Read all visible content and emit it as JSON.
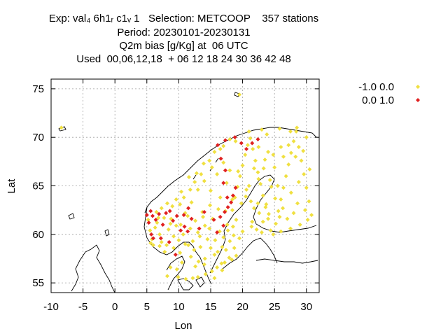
{
  "title": {
    "line1": "Exp: val₄ 6h1ᵣ c1ᵥ 1   Selection: METCOOP    357 stations",
    "line2": "Period: 20230101-20230131",
    "line3": "Q2m bias [g/Kg] at  06 UTC",
    "line4": "Used  00,06,12,18  + 06 12 18 24 30 36 42 48"
  },
  "chart_data": {
    "type": "scatter",
    "xlabel": "Lon",
    "ylabel": "Lat",
    "xlim": [
      -10,
      32
    ],
    "ylim": [
      54,
      76
    ],
    "xticks": [
      -10,
      -5,
      0,
      5,
      10,
      15,
      20,
      25,
      30
    ],
    "yticks": [
      55,
      60,
      65,
      70,
      75
    ],
    "grid": true,
    "legend_position": "right",
    "series": [
      {
        "name": "-1.0 0.0",
        "color": "#f0e040",
        "points": [
          [
            -8.4,
            71.0
          ],
          [
            19.5,
            74.4
          ],
          [
            5.2,
            61.5
          ],
          [
            5.5,
            60.4
          ],
          [
            5.8,
            59.5
          ],
          [
            6.0,
            58.9
          ],
          [
            6.3,
            60.7
          ],
          [
            6.6,
            61.2
          ],
          [
            7.0,
            60.0
          ],
          [
            7.3,
            59.2
          ],
          [
            7.8,
            58.2
          ],
          [
            8.1,
            58.9
          ],
          [
            8.4,
            60.5
          ],
          [
            8.8,
            61.6
          ],
          [
            9.2,
            59.8
          ],
          [
            9.6,
            60.9
          ],
          [
            10.0,
            59.4
          ],
          [
            10.3,
            61.0
          ],
          [
            10.7,
            60.0
          ],
          [
            11.0,
            59.0
          ],
          [
            11.4,
            61.9
          ],
          [
            11.8,
            60.6
          ],
          [
            12.2,
            59.3
          ],
          [
            12.6,
            61.4
          ],
          [
            13.0,
            60.2
          ],
          [
            13.4,
            58.7
          ],
          [
            13.7,
            62.3
          ],
          [
            14.1,
            60.9
          ],
          [
            14.5,
            59.5
          ],
          [
            14.9,
            63.0
          ],
          [
            15.3,
            61.6
          ],
          [
            15.6,
            57.9
          ],
          [
            16.0,
            56.6
          ],
          [
            16.4,
            60.3
          ],
          [
            16.8,
            58.7
          ],
          [
            17.2,
            57.1
          ],
          [
            17.6,
            61.0
          ],
          [
            18.0,
            59.3
          ],
          [
            18.4,
            62.5
          ],
          [
            18.8,
            63.8
          ],
          [
            19.2,
            64.9
          ],
          [
            19.6,
            66.0
          ],
          [
            20.0,
            67.1
          ],
          [
            20.4,
            68.2
          ],
          [
            20.8,
            69.2
          ],
          [
            21.2,
            69.9
          ],
          [
            21.6,
            68.8
          ],
          [
            22.0,
            67.6
          ],
          [
            22.4,
            66.4
          ],
          [
            22.8,
            65.2
          ],
          [
            23.2,
            64.0
          ],
          [
            23.6,
            62.8
          ],
          [
            24.0,
            61.6
          ],
          [
            24.4,
            60.4
          ],
          [
            24.8,
            60.0
          ],
          [
            25.2,
            61.1
          ],
          [
            25.6,
            62.4
          ],
          [
            26.0,
            63.6
          ],
          [
            26.4,
            64.8
          ],
          [
            26.8,
            66.0
          ],
          [
            27.2,
            67.2
          ],
          [
            27.6,
            68.4
          ],
          [
            28.0,
            69.6
          ],
          [
            28.4,
            70.6
          ],
          [
            28.8,
            69.0
          ],
          [
            29.2,
            67.6
          ],
          [
            29.6,
            66.2
          ],
          [
            30.0,
            64.8
          ],
          [
            30.4,
            63.4
          ],
          [
            30.8,
            62.0
          ],
          [
            29.0,
            61.0
          ],
          [
            27.5,
            60.6
          ],
          [
            26.0,
            60.3
          ],
          [
            23.0,
            60.2
          ],
          [
            22.2,
            60.5
          ],
          [
            21.5,
            61.3
          ],
          [
            21.8,
            62.7
          ],
          [
            21.3,
            63.4
          ],
          [
            20.5,
            63.9
          ],
          [
            25.5,
            65.0
          ],
          [
            24.3,
            65.6
          ],
          [
            22.5,
            65.7
          ],
          [
            21.0,
            65.0
          ],
          [
            17.5,
            65.3
          ],
          [
            16.0,
            66.2
          ],
          [
            14.8,
            67.6
          ],
          [
            15.6,
            68.5
          ],
          [
            17.0,
            69.1
          ],
          [
            18.9,
            69.6
          ],
          [
            23.8,
            70.3
          ],
          [
            25.8,
            70.9
          ],
          [
            27.5,
            70.6
          ],
          [
            30.0,
            70.0
          ],
          [
            28.5,
            71.0
          ],
          [
            26.0,
            69.0
          ],
          [
            24.0,
            68.5
          ],
          [
            22.5,
            69.0
          ],
          [
            13.5,
            66.2
          ],
          [
            12.5,
            65.4
          ],
          [
            11.8,
            64.6
          ],
          [
            10.8,
            63.8
          ],
          [
            10.2,
            63.1
          ],
          [
            9.0,
            62.9
          ],
          [
            8.2,
            63.2
          ],
          [
            7.3,
            62.7
          ],
          [
            6.5,
            62.3
          ],
          [
            11.0,
            62.2
          ],
          [
            12.0,
            63.3
          ],
          [
            13.0,
            64.6
          ],
          [
            14.0,
            65.5
          ],
          [
            16.5,
            63.8
          ],
          [
            15.0,
            64.5
          ],
          [
            17.3,
            62.4
          ],
          [
            19.0,
            61.5
          ],
          [
            20.0,
            60.3
          ],
          [
            19.5,
            59.6
          ],
          [
            18.7,
            58.6
          ],
          [
            17.9,
            57.6
          ],
          [
            16.7,
            57.0
          ],
          [
            15.2,
            56.2
          ],
          [
            14.2,
            55.9
          ],
          [
            13.0,
            55.6
          ],
          [
            12.6,
            56.7
          ],
          [
            11.9,
            57.7
          ],
          [
            12.4,
            58.4
          ],
          [
            13.3,
            59.8
          ],
          [
            14.8,
            60.6
          ],
          [
            15.7,
            59.4
          ],
          [
            17.0,
            59.7
          ],
          [
            18.5,
            60.8
          ],
          [
            10.5,
            57.1
          ],
          [
            9.7,
            56.4
          ],
          [
            8.7,
            56.6
          ],
          [
            9.9,
            55.6
          ],
          [
            11.1,
            55.4
          ],
          [
            8.2,
            55.7
          ],
          [
            12.2,
            55.5
          ],
          [
            14.0,
            56.9
          ],
          [
            23.0,
            70.8
          ],
          [
            21.0,
            70.6
          ],
          [
            18.0,
            69.8
          ],
          [
            16.5,
            68.8
          ],
          [
            15.2,
            66.9
          ],
          [
            13.9,
            67.3
          ],
          [
            12.8,
            66.3
          ],
          [
            11.6,
            65.9
          ],
          [
            10.4,
            64.4
          ],
          [
            9.6,
            63.6
          ],
          [
            8.7,
            61.1
          ],
          [
            7.7,
            61.7
          ],
          [
            7.0,
            58.8
          ],
          [
            6.8,
            61.7
          ],
          [
            5.6,
            59.1
          ],
          [
            9.2,
            58.6
          ],
          [
            10.2,
            58.1
          ],
          [
            11.5,
            58.9
          ],
          [
            13.8,
            61.8
          ],
          [
            16.2,
            62.6
          ],
          [
            18.4,
            63.6
          ],
          [
            20.6,
            64.6
          ],
          [
            19.3,
            66.5
          ],
          [
            18.0,
            66.6
          ],
          [
            17.0,
            67.4
          ],
          [
            21.8,
            66.8
          ],
          [
            23.3,
            66.8
          ],
          [
            25.0,
            66.9
          ],
          [
            26.4,
            68.0
          ],
          [
            27.2,
            69.2
          ],
          [
            24.8,
            68.2
          ],
          [
            23.5,
            67.7
          ],
          [
            28.3,
            68.0
          ],
          [
            29.5,
            68.6
          ],
          [
            30.5,
            66.7
          ],
          [
            28.8,
            65.4
          ],
          [
            27.6,
            64.3
          ],
          [
            28.6,
            63.2
          ],
          [
            29.8,
            62.5
          ],
          [
            30.2,
            61.5
          ],
          [
            27.0,
            61.6
          ],
          [
            26.3,
            62.7
          ],
          [
            25.1,
            63.7
          ],
          [
            24.5,
            64.9
          ],
          [
            23.7,
            63.1
          ],
          [
            22.6,
            62.2
          ],
          [
            23.2,
            61.3
          ],
          [
            24.1,
            62.1
          ],
          [
            25.8,
            61.8
          ],
          [
            28.0,
            62.2
          ],
          [
            21.4,
            60.8
          ],
          [
            22.4,
            63.2
          ],
          [
            19.8,
            63.2
          ],
          [
            17.7,
            60.4
          ],
          [
            16.1,
            58.2
          ],
          [
            15.0,
            58.6
          ],
          [
            14.1,
            57.5
          ],
          [
            13.1,
            57.2
          ],
          [
            16.8,
            56.3
          ],
          [
            18.3,
            57.4
          ],
          [
            19.0,
            57.8
          ],
          [
            18.6,
            59.9
          ],
          [
            17.4,
            58.4
          ],
          [
            15.6,
            55.5
          ]
        ]
      },
      {
        "name": "0.0 1.0",
        "color": "#e02020",
        "points": [
          [
            5.0,
            62.0
          ],
          [
            5.3,
            61.2
          ],
          [
            5.6,
            62.4
          ],
          [
            5.9,
            61.9
          ],
          [
            6.4,
            61.5
          ],
          [
            6.9,
            62.1
          ],
          [
            7.5,
            61.0
          ],
          [
            8.0,
            62.2
          ],
          [
            8.6,
            62.4
          ],
          [
            9.1,
            61.4
          ],
          [
            9.7,
            61.9
          ],
          [
            10.3,
            60.4
          ],
          [
            10.9,
            60.8
          ],
          [
            11.4,
            60.3
          ],
          [
            12.0,
            61.6
          ],
          [
            13.2,
            60.6
          ],
          [
            9.5,
            57.9
          ],
          [
            8.5,
            59.2
          ],
          [
            7.2,
            59.6
          ],
          [
            5.7,
            60.0
          ],
          [
            6.0,
            59.6
          ],
          [
            15.5,
            61.5
          ],
          [
            16.0,
            60.2
          ],
          [
            16.5,
            61.8
          ],
          [
            17.2,
            62.3
          ],
          [
            17.7,
            62.8
          ],
          [
            18.2,
            63.3
          ],
          [
            18.5,
            64.0
          ],
          [
            18.9,
            64.8
          ],
          [
            17.6,
            63.8
          ],
          [
            17.0,
            65.3
          ],
          [
            17.3,
            66.6
          ],
          [
            16.6,
            67.8
          ],
          [
            16.1,
            69.2
          ],
          [
            17.3,
            69.7
          ],
          [
            18.8,
            70.0
          ],
          [
            19.8,
            69.4
          ],
          [
            20.6,
            68.8
          ],
          [
            22.4,
            69.8
          ],
          [
            21.5,
            69.4
          ],
          [
            17.0,
            60.9
          ],
          [
            14.0,
            62.3
          ],
          [
            11.5,
            62.7
          ],
          [
            10.8,
            62.0
          ]
        ]
      }
    ]
  }
}
